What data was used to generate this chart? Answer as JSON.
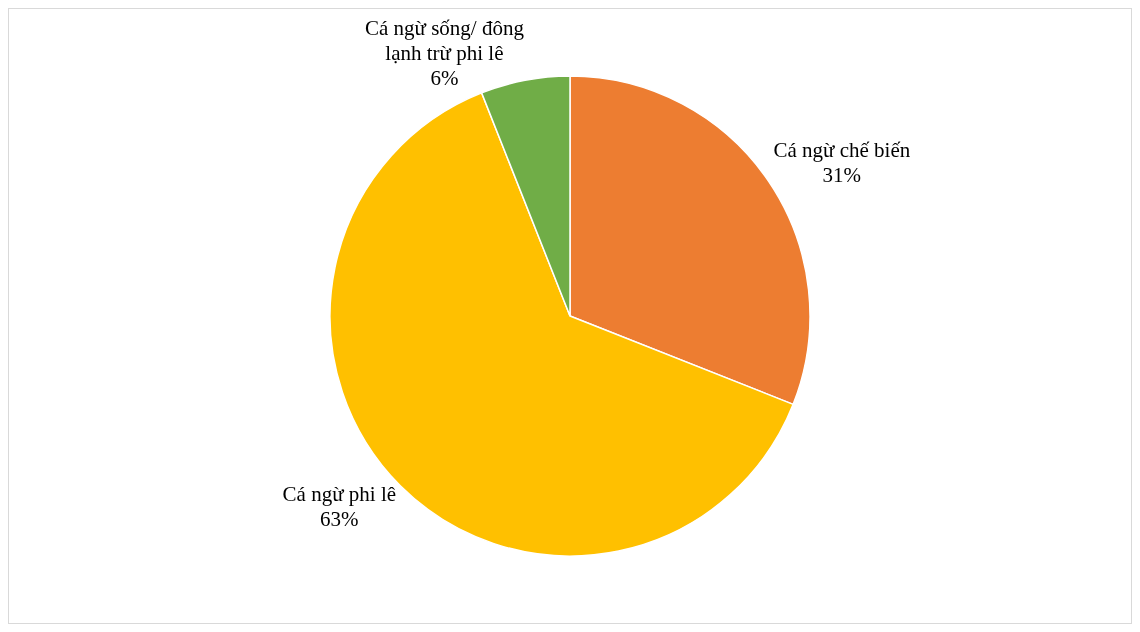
{
  "chart_data": {
    "type": "pie",
    "categories": [
      "Cá ngừ chế biến",
      "Cá ngừ phi lê",
      "Cá ngừ sống/ đông lạnh trừ phi lê"
    ],
    "values": [
      31,
      63,
      6
    ],
    "colors": [
      "#ed7d31",
      "#ffc000",
      "#70ad47"
    ],
    "value_labels": [
      "31%",
      "63%",
      "6%"
    ],
    "legend": false
  }
}
